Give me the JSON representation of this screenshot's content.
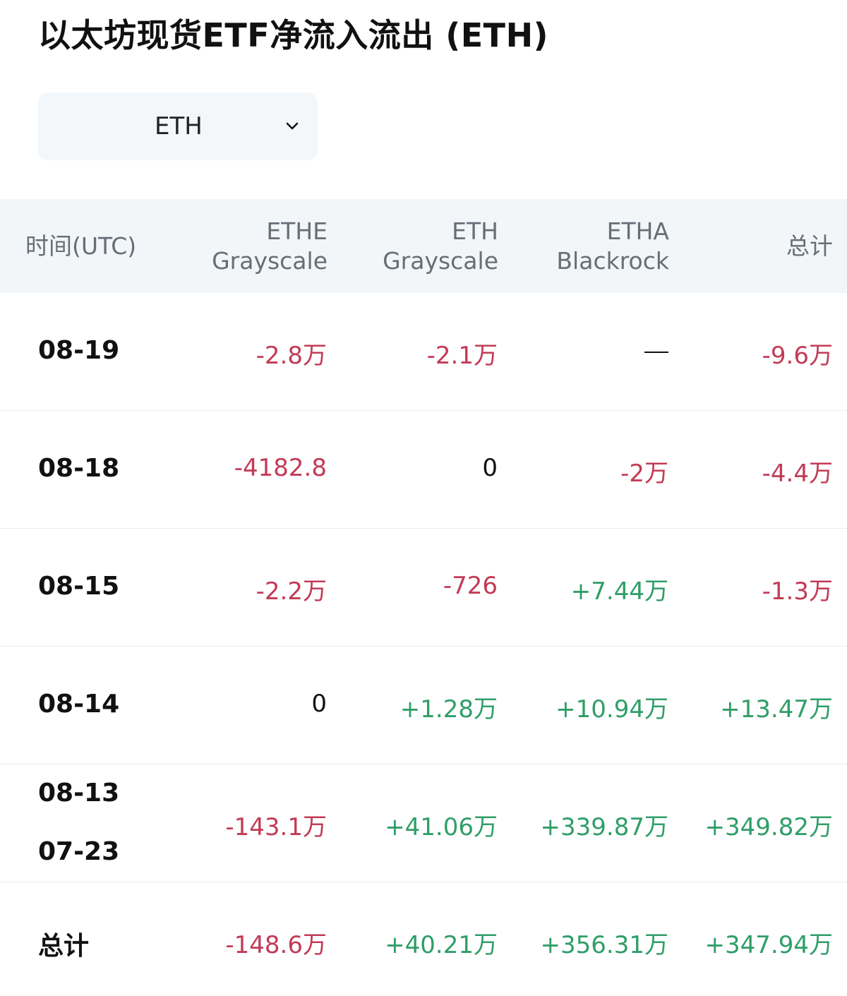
{
  "title": "以太坊现货ETF净流入流出 (ETH)",
  "selector": {
    "value": "ETH",
    "icon": "chevron-down-icon"
  },
  "table": {
    "headers": {
      "time": "时间(UTC)",
      "col1_line1": "ETHE",
      "col1_line2": "Grayscale",
      "col2_line1": "ETH",
      "col2_line2": "Grayscale",
      "col3_line1": "ETHA",
      "col3_line2": "Blackrock",
      "col4": "总计"
    },
    "rows": [
      {
        "date": "08-19",
        "ethe": "-2.8万",
        "eth": "-2.1万",
        "etha": "—",
        "total": "-9.6万"
      },
      {
        "date": "08-18",
        "ethe": "-4182.8",
        "eth": "0",
        "etha": "-2万",
        "total": "-4.4万"
      },
      {
        "date": "08-15",
        "ethe": "-2.2万",
        "eth": "-726",
        "etha": "+7.44万",
        "total": "-1.3万"
      },
      {
        "date": "08-14",
        "ethe": "0",
        "eth": "+1.28万",
        "etha": "+10.94万",
        "total": "+13.47万"
      },
      {
        "date": "08-13",
        "date2": "07-23",
        "ethe": "-143.1万",
        "eth": "+41.06万",
        "etha": "+339.87万",
        "total": "+349.82万"
      },
      {
        "date": "总计",
        "ethe": "-148.6万",
        "eth": "+40.21万",
        "etha": "+356.31万",
        "total": "+347.94万"
      }
    ]
  },
  "colors": {
    "negative": "#c23b56",
    "positive": "#2f9e68",
    "header_bg": "#f2f6f9",
    "selector_bg": "#f4f7f9"
  }
}
